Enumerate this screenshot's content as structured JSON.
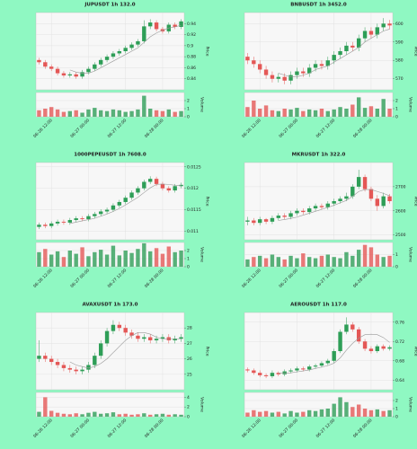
{
  "chart_data": [
    {
      "type": "candlestick",
      "title": "JUPUSDT 1h 132.0",
      "ylabel": "Price",
      "volume_label": "Volume",
      "categories": [
        null,
        null,
        "06-26 12:00",
        null,
        null,
        null,
        null,
        null,
        "06-27 00:00",
        null,
        null,
        null,
        null,
        null,
        "06-27 12:00",
        null,
        null,
        null,
        null,
        null,
        "06-28 00:00",
        null,
        null,
        null
      ],
      "open": [
        0.874,
        0.87,
        0.862,
        0.858,
        0.85,
        0.846,
        0.848,
        0.844,
        0.852,
        0.858,
        0.866,
        0.874,
        0.88,
        0.886,
        0.89,
        0.896,
        0.902,
        0.908,
        0.935,
        0.942,
        0.93,
        0.926,
        0.938,
        0.934
      ],
      "high": [
        0.878,
        0.874,
        0.866,
        0.862,
        0.854,
        0.852,
        0.852,
        0.856,
        0.862,
        0.87,
        0.878,
        0.884,
        0.89,
        0.894,
        0.9,
        0.906,
        0.912,
        0.946,
        0.948,
        0.946,
        0.934,
        0.942,
        0.942,
        0.948
      ],
      "low": [
        0.866,
        0.858,
        0.854,
        0.846,
        0.842,
        0.842,
        0.84,
        0.84,
        0.848,
        0.854,
        0.862,
        0.87,
        0.876,
        0.882,
        0.886,
        0.892,
        0.898,
        0.904,
        0.93,
        0.926,
        0.922,
        0.922,
        0.93,
        0.93
      ],
      "close": [
        0.87,
        0.862,
        0.858,
        0.85,
        0.846,
        0.848,
        0.844,
        0.852,
        0.858,
        0.866,
        0.874,
        0.88,
        0.886,
        0.89,
        0.896,
        0.902,
        0.908,
        0.935,
        0.942,
        0.93,
        0.926,
        0.938,
        0.934,
        0.944
      ],
      "volume": [
        0.8,
        1.0,
        1.2,
        0.9,
        0.6,
        0.7,
        0.8,
        0.5,
        0.9,
        1.1,
        0.8,
        0.7,
        0.9,
        0.8,
        0.6,
        0.7,
        0.9,
        2.6,
        1.0,
        0.8,
        0.7,
        0.9,
        0.6,
        0.7
      ],
      "ma": [
        null,
        null,
        null,
        null,
        null,
        0.856,
        0.852,
        0.85,
        0.85,
        0.854,
        0.86,
        0.866,
        0.872,
        0.878,
        0.884,
        0.89,
        0.896,
        0.906,
        0.916,
        0.923,
        0.928,
        0.932,
        0.934,
        0.937
      ],
      "ylim": [
        0.82,
        0.96
      ],
      "yticks": [
        0.84,
        0.86,
        0.88,
        0.9,
        0.92,
        0.94
      ],
      "vol_ylim": [
        0,
        3
      ],
      "vol_yticks": [
        0,
        1,
        2
      ],
      "up_color": "#2e9e57",
      "down_color": "#e45756",
      "ma_color": "#999999",
      "grid": true
    },
    {
      "type": "candlestick",
      "title": "BNBUSDT 1h 3452.0",
      "ylabel": "Price",
      "volume_label": "Volume",
      "categories": [
        null,
        null,
        "06-26 12:00",
        null,
        null,
        null,
        null,
        null,
        "06-27 00:00",
        null,
        null,
        null,
        null,
        null,
        "06-27 12:00",
        null,
        null,
        null,
        null,
        null,
        "06-28 00:00",
        null,
        null,
        null
      ],
      "open": [
        582,
        580,
        578,
        575,
        572,
        570,
        571,
        569,
        572,
        574,
        573,
        576,
        578,
        577,
        580,
        583,
        585,
        588,
        587,
        592,
        596,
        594,
        598,
        600
      ],
      "high": [
        584,
        582,
        580,
        577,
        574,
        573,
        573,
        574,
        576,
        576,
        578,
        580,
        580,
        582,
        585,
        587,
        590,
        590,
        594,
        598,
        598,
        600,
        603,
        602
      ],
      "low": [
        578,
        576,
        573,
        570,
        568,
        568,
        567,
        567,
        570,
        571,
        571,
        574,
        575,
        575,
        578,
        581,
        583,
        585,
        585,
        590,
        592,
        592,
        596,
        597
      ],
      "close": [
        580,
        578,
        575,
        572,
        570,
        571,
        569,
        572,
        574,
        573,
        576,
        578,
        577,
        580,
        583,
        585,
        588,
        587,
        592,
        596,
        594,
        598,
        600,
        599
      ],
      "volume": [
        1.2,
        2.0,
        1.0,
        1.4,
        0.8,
        0.7,
        1.0,
        0.9,
        1.1,
        0.7,
        0.9,
        0.8,
        1.0,
        0.7,
        0.9,
        1.2,
        1.0,
        1.5,
        2.4,
        1.1,
        1.3,
        1.0,
        2.2,
        1.0
      ],
      "ma": [
        null,
        null,
        null,
        null,
        null,
        573,
        572,
        571,
        571,
        572,
        573,
        575,
        576,
        577,
        579,
        581,
        583,
        585,
        587,
        590,
        592,
        594,
        596,
        597
      ],
      "ylim": [
        564,
        606
      ],
      "yticks": [
        570,
        580,
        590,
        600
      ],
      "vol_ylim": [
        0,
        3
      ],
      "vol_yticks": [
        0,
        1,
        2
      ],
      "up_color": "#2e9e57",
      "down_color": "#e45756",
      "ma_color": "#999999",
      "grid": true
    },
    {
      "type": "candlestick",
      "title": "1000PEPEUSDT 1h 7608.0",
      "ylabel": "Price",
      "volume_label": "Volume",
      "categories": [
        null,
        null,
        "06-26 12:00",
        null,
        null,
        null,
        null,
        null,
        "06-27 00:00",
        null,
        null,
        null,
        null,
        null,
        "06-27 12:00",
        null,
        null,
        null,
        null,
        null,
        "06-28 00:00",
        null,
        null,
        null
      ],
      "open": [
        0.0111,
        0.01115,
        0.01112,
        0.01118,
        0.01122,
        0.0112,
        0.01126,
        0.0113,
        0.01128,
        0.01135,
        0.0114,
        0.01146,
        0.0115,
        0.0116,
        0.01168,
        0.01178,
        0.0119,
        0.012,
        0.01215,
        0.01222,
        0.0121,
        0.012,
        0.01195,
        0.01205
      ],
      "high": [
        0.0112,
        0.0112,
        0.01123,
        0.01127,
        0.01127,
        0.01131,
        0.01135,
        0.01135,
        0.0114,
        0.01145,
        0.01151,
        0.01155,
        0.01165,
        0.01173,
        0.01183,
        0.01195,
        0.01205,
        0.0122,
        0.01228,
        0.01227,
        0.01215,
        0.01205,
        0.0121,
        0.01213
      ],
      "low": [
        0.01105,
        0.01107,
        0.01107,
        0.01113,
        0.01115,
        0.01115,
        0.01121,
        0.01123,
        0.01123,
        0.0113,
        0.01135,
        0.01141,
        0.01145,
        0.01155,
        0.01163,
        0.01173,
        0.01185,
        0.01195,
        0.0121,
        0.01205,
        0.01195,
        0.0119,
        0.0119,
        0.012
      ],
      "close": [
        0.01115,
        0.01112,
        0.01118,
        0.01122,
        0.0112,
        0.01126,
        0.0113,
        0.01128,
        0.01135,
        0.0114,
        0.01146,
        0.0115,
        0.0116,
        0.01168,
        0.01178,
        0.0119,
        0.012,
        0.01215,
        0.01222,
        0.0121,
        0.012,
        0.01195,
        0.01205,
        0.01208
      ],
      "volume": [
        1.8,
        2.2,
        1.5,
        1.9,
        1.2,
        2.0,
        1.6,
        2.4,
        1.3,
        1.8,
        2.1,
        1.5,
        2.6,
        1.4,
        2.0,
        1.7,
        2.2,
        2.9,
        1.9,
        2.3,
        1.6,
        2.5,
        1.8,
        2.0
      ],
      "ma": [
        null,
        null,
        null,
        null,
        null,
        0.01118,
        0.01121,
        0.01124,
        0.01127,
        0.0113,
        0.01135,
        0.0114,
        0.01146,
        0.01153,
        0.01161,
        0.0117,
        0.01179,
        0.0119,
        0.01201,
        0.01209,
        0.0121,
        0.01209,
        0.01207,
        0.01206
      ],
      "ylim": [
        0.0108,
        0.0126
      ],
      "yticks": [
        0.011,
        0.0115,
        0.012,
        0.0125
      ],
      "vol_ylim": [
        0,
        3
      ],
      "vol_yticks": [
        0,
        1,
        2
      ],
      "up_color": "#2e9e57",
      "down_color": "#e45756",
      "ma_color": "#999999",
      "grid": true
    },
    {
      "type": "candlestick",
      "title": "MKRUSDT 1h 322.0",
      "ylabel": "Price",
      "volume_label": "Volume",
      "categories": [
        null,
        null,
        "06-26 12:00",
        null,
        null,
        null,
        null,
        null,
        "06-27 00:00",
        null,
        null,
        null,
        null,
        null,
        "06-27 12:00",
        null,
        null,
        null,
        null,
        null,
        "06-28 00:00",
        null,
        null,
        null
      ],
      "open": [
        2555,
        2560,
        2550,
        2565,
        2555,
        2570,
        2580,
        2575,
        2590,
        2600,
        2595,
        2610,
        2620,
        2615,
        2630,
        2640,
        2650,
        2660,
        2700,
        2740,
        2690,
        2650,
        2620,
        2660
      ],
      "high": [
        2575,
        2570,
        2575,
        2570,
        2580,
        2590,
        2590,
        2600,
        2610,
        2610,
        2620,
        2630,
        2630,
        2640,
        2650,
        2660,
        2675,
        2710,
        2770,
        2750,
        2700,
        2665,
        2675,
        2670
      ],
      "low": [
        2540,
        2540,
        2540,
        2545,
        2545,
        2560,
        2565,
        2565,
        2580,
        2585,
        2585,
        2600,
        2605,
        2605,
        2620,
        2630,
        2640,
        2650,
        2690,
        2680,
        2640,
        2600,
        2610,
        2630
      ],
      "close": [
        2560,
        2550,
        2565,
        2555,
        2570,
        2580,
        2575,
        2590,
        2600,
        2595,
        2610,
        2620,
        2615,
        2630,
        2640,
        2650,
        2660,
        2700,
        2740,
        2690,
        2650,
        2620,
        2660,
        2640
      ],
      "volume": [
        0.6,
        0.8,
        0.9,
        0.7,
        1.0,
        0.8,
        0.6,
        0.9,
        0.7,
        1.1,
        0.8,
        0.7,
        0.9,
        1.0,
        0.8,
        0.7,
        1.2,
        0.9,
        1.4,
        1.8,
        1.6,
        1.0,
        0.8,
        0.9
      ],
      "ma": [
        null,
        null,
        null,
        null,
        null,
        2560,
        2564,
        2568,
        2574,
        2582,
        2590,
        2598,
        2606,
        2614,
        2623,
        2633,
        2643,
        2660,
        2680,
        2688,
        2688,
        2680,
        2672,
        2662
      ],
      "ylim": [
        2480,
        2800
      ],
      "yticks": [
        2500,
        2600,
        2700
      ],
      "vol_ylim": [
        0,
        2
      ],
      "vol_yticks": [
        0,
        1
      ],
      "up_color": "#2e9e57",
      "down_color": "#e45756",
      "ma_color": "#999999",
      "grid": true
    },
    {
      "type": "candlestick",
      "title": "AVAXUSDT 1h 173.0",
      "ylabel": "Price",
      "volume_label": "Volume",
      "categories": [
        null,
        null,
        "06-26 12:00",
        null,
        null,
        null,
        null,
        null,
        "06-27 00:00",
        null,
        null,
        null,
        null,
        null,
        "06-27 12:00",
        null,
        null,
        null,
        null,
        null,
        "06-28 00:00",
        null,
        null,
        null
      ],
      "open": [
        26.0,
        26.2,
        26.0,
        25.8,
        25.6,
        25.4,
        25.3,
        25.2,
        25.3,
        25.6,
        26.2,
        27.0,
        27.8,
        28.2,
        28.0,
        27.7,
        27.5,
        27.3,
        27.4,
        27.2,
        27.3,
        27.4,
        27.2,
        27.3
      ],
      "high": [
        27.2,
        26.4,
        26.2,
        26.0,
        25.8,
        25.6,
        25.5,
        25.5,
        25.8,
        26.4,
        27.2,
        28.0,
        28.5,
        28.4,
        28.2,
        27.9,
        27.7,
        27.6,
        27.6,
        27.5,
        27.6,
        27.6,
        27.5,
        27.6
      ],
      "low": [
        25.8,
        25.8,
        25.6,
        25.4,
        25.2,
        25.1,
        25.0,
        25.0,
        25.1,
        25.4,
        26.0,
        26.8,
        27.6,
        27.8,
        27.5,
        27.3,
        27.1,
        27.1,
        27.0,
        27.0,
        27.1,
        27.0,
        27.0,
        27.1
      ],
      "close": [
        26.2,
        26.0,
        25.8,
        25.6,
        25.4,
        25.3,
        25.2,
        25.3,
        25.6,
        26.2,
        27.0,
        27.8,
        28.2,
        28.0,
        27.7,
        27.5,
        27.3,
        27.4,
        27.2,
        27.3,
        27.4,
        27.2,
        27.3,
        27.4
      ],
      "volume": [
        1.0,
        4.0,
        1.2,
        0.8,
        0.6,
        0.5,
        0.7,
        0.5,
        0.8,
        1.0,
        0.6,
        0.7,
        0.9,
        0.5,
        0.6,
        0.4,
        0.5,
        0.7,
        0.4,
        0.5,
        0.6,
        0.4,
        0.5,
        0.4
      ],
      "ma": [
        null,
        null,
        null,
        null,
        null,
        25.8,
        25.6,
        25.5,
        25.4,
        25.5,
        25.7,
        26.0,
        26.4,
        26.8,
        27.2,
        27.5,
        27.7,
        27.7,
        27.6,
        27.4,
        27.3,
        27.3,
        27.3,
        27.3
      ],
      "ylim": [
        24,
        29
      ],
      "yticks": [
        25,
        26,
        27,
        28
      ],
      "vol_ylim": [
        0,
        5
      ],
      "vol_yticks": [
        0,
        2,
        4
      ],
      "up_color": "#2e9e57",
      "down_color": "#e45756",
      "ma_color": "#999999",
      "grid": true
    },
    {
      "type": "candlestick",
      "title": "AEROUSDT 1h 117.0",
      "ylabel": "Price",
      "volume_label": "Volume",
      "categories": [
        null,
        null,
        "06-26 12:00",
        null,
        null,
        null,
        null,
        null,
        "06-27 00:00",
        null,
        null,
        null,
        null,
        null,
        "06-27 12:00",
        null,
        null,
        null,
        null,
        null,
        "06-28 00:00",
        null,
        null,
        null
      ],
      "open": [
        0.662,
        0.66,
        0.655,
        0.65,
        0.648,
        0.655,
        0.652,
        0.658,
        0.66,
        0.664,
        0.662,
        0.668,
        0.67,
        0.675,
        0.68,
        0.7,
        0.74,
        0.755,
        0.745,
        0.72,
        0.705,
        0.7,
        0.71,
        0.705
      ],
      "high": [
        0.666,
        0.664,
        0.66,
        0.654,
        0.66,
        0.658,
        0.662,
        0.664,
        0.668,
        0.668,
        0.672,
        0.674,
        0.679,
        0.684,
        0.705,
        0.745,
        0.77,
        0.76,
        0.75,
        0.725,
        0.71,
        0.714,
        0.714,
        0.712
      ],
      "low": [
        0.656,
        0.651,
        0.646,
        0.644,
        0.644,
        0.648,
        0.648,
        0.654,
        0.656,
        0.658,
        0.658,
        0.664,
        0.666,
        0.671,
        0.676,
        0.696,
        0.735,
        0.74,
        0.715,
        0.7,
        0.695,
        0.696,
        0.701,
        0.701
      ],
      "close": [
        0.66,
        0.655,
        0.65,
        0.648,
        0.655,
        0.652,
        0.658,
        0.66,
        0.664,
        0.662,
        0.668,
        0.67,
        0.675,
        0.68,
        0.7,
        0.74,
        0.755,
        0.745,
        0.72,
        0.705,
        0.7,
        0.71,
        0.705,
        0.708
      ],
      "volume": [
        0.5,
        0.8,
        0.6,
        0.7,
        0.5,
        0.6,
        0.4,
        0.7,
        0.5,
        0.6,
        0.8,
        0.7,
        0.9,
        1.0,
        1.6,
        2.4,
        1.8,
        1.2,
        1.5,
        1.0,
        0.8,
        0.9,
        0.7,
        0.8
      ],
      "ma": [
        null,
        null,
        null,
        null,
        null,
        0.654,
        0.654,
        0.655,
        0.657,
        0.659,
        0.661,
        0.664,
        0.667,
        0.67,
        0.675,
        0.686,
        0.702,
        0.716,
        0.727,
        0.734,
        0.735,
        0.734,
        0.728,
        0.718
      ],
      "ylim": [
        0.62,
        0.78
      ],
      "yticks": [
        0.64,
        0.68,
        0.72,
        0.76
      ],
      "vol_ylim": [
        0,
        3
      ],
      "vol_yticks": [
        0,
        1,
        2
      ],
      "up_color": "#2e9e57",
      "down_color": "#e45756",
      "ma_color": "#999999",
      "grid": true
    }
  ]
}
